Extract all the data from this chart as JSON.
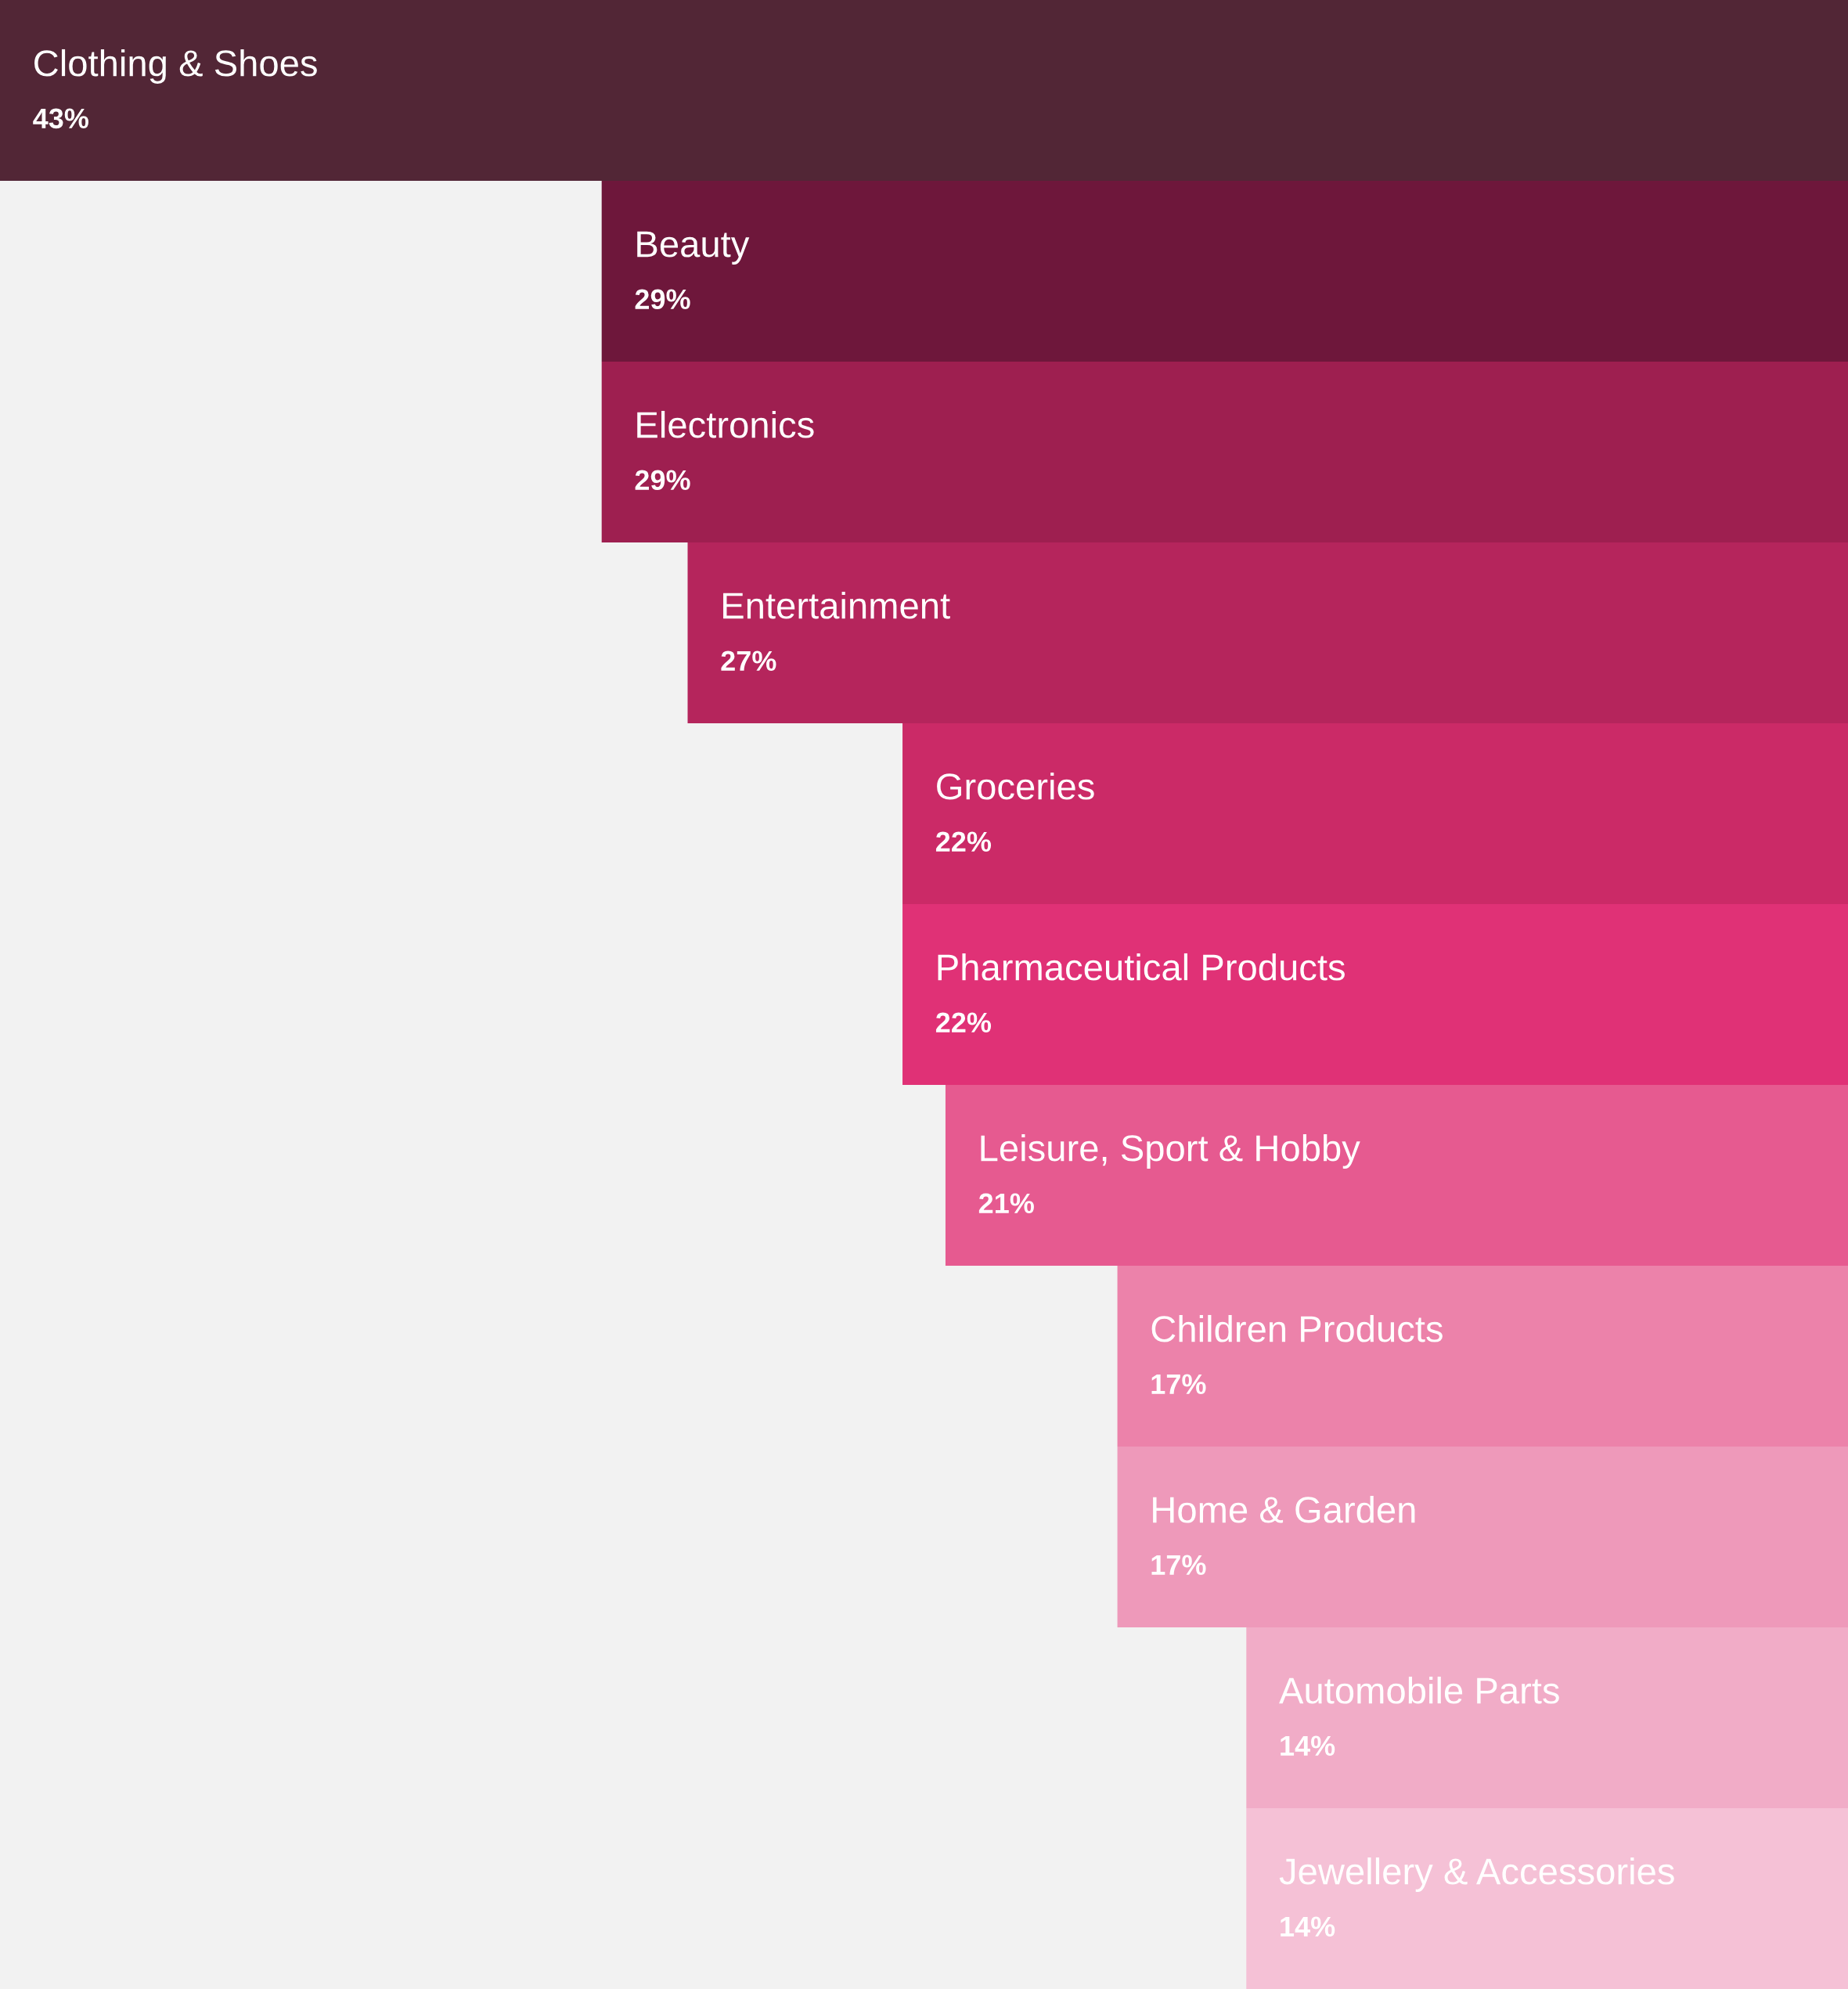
{
  "chart_data": {
    "type": "bar",
    "orientation": "horizontal",
    "categories": [
      "Clothing & Shoes",
      "Beauty",
      "Electronics",
      "Entertainment",
      "Groceries",
      "Pharmaceutical Products",
      "Leisure, Sport & Hobby",
      "Children Products",
      "Home & Garden",
      "Automobile Parts",
      "Jewellery & Accessories"
    ],
    "values": [
      43,
      29,
      29,
      27,
      22,
      22,
      21,
      17,
      17,
      14,
      14
    ],
    "value_labels": [
      "43%",
      "29%",
      "29%",
      "27%",
      "22%",
      "22%",
      "21%",
      "17%",
      "17%",
      "14%",
      "14%"
    ],
    "colors": [
      "#522636",
      "#6e173b",
      "#9e1f50",
      "#b5255c",
      "#cb2a67",
      "#e03176",
      "#e65a90",
      "#ec82aa",
      "#ee99ba",
      "#f1acc7",
      "#f5c1d6"
    ],
    "xlim": [
      43,
      0
    ]
  }
}
